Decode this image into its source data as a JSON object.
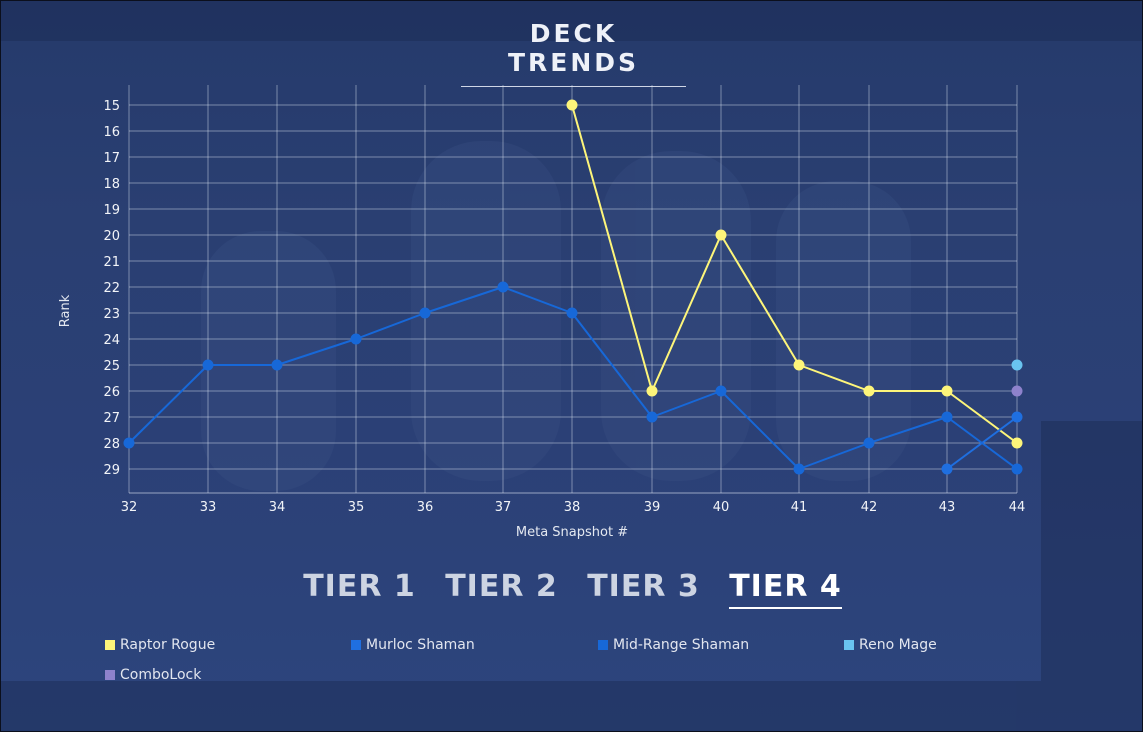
{
  "page": {
    "title": "DECK TRENDS"
  },
  "tabs": [
    {
      "label": "TIER 1",
      "active": false
    },
    {
      "label": "TIER 2",
      "active": false
    },
    {
      "label": "TIER 3",
      "active": false
    },
    {
      "label": "TIER 4",
      "active": true
    }
  ],
  "legend": [
    {
      "label": "Raptor Rogue",
      "color": "#fdf57a"
    },
    {
      "label": "Murloc Shaman",
      "color": "#1f6fe0"
    },
    {
      "label": "Mid-Range Shaman",
      "color": "#1768d8"
    },
    {
      "label": "Reno Mage",
      "color": "#69c3ef"
    },
    {
      "label": "ComboLock",
      "color": "#8e82cc"
    }
  ],
  "chart_data": {
    "type": "line",
    "xlabel": "Meta Snapshot #",
    "ylabel": "Rank",
    "x": [
      32,
      33,
      34,
      35,
      36,
      37,
      38,
      39,
      40,
      41,
      42,
      43,
      44
    ],
    "ylim": [
      15,
      30
    ],
    "y_reversed": true,
    "y_ticks": [
      15,
      16,
      17,
      18,
      19,
      20,
      21,
      22,
      23,
      24,
      25,
      26,
      27,
      28,
      29
    ],
    "grid": true,
    "legend_position": "bottom",
    "series": [
      {
        "name": "Raptor Rogue",
        "color": "#fdf57a",
        "values": [
          null,
          null,
          null,
          null,
          null,
          null,
          15,
          26,
          20,
          25,
          26,
          26,
          28
        ]
      },
      {
        "name": "Murloc Shaman",
        "color": "#1f6fe0",
        "values": [
          null,
          null,
          null,
          null,
          null,
          null,
          null,
          null,
          null,
          null,
          null,
          29,
          27
        ]
      },
      {
        "name": "Mid-Range Shaman",
        "color": "#1768d8",
        "values": [
          28,
          25,
          25,
          24,
          23,
          22,
          23,
          27,
          26,
          29,
          28,
          27,
          29
        ]
      },
      {
        "name": "Reno Mage",
        "color": "#69c3ef",
        "values": [
          null,
          null,
          null,
          null,
          null,
          null,
          null,
          null,
          null,
          null,
          null,
          null,
          25
        ]
      },
      {
        "name": "ComboLock",
        "color": "#8e82cc",
        "values": [
          null,
          null,
          null,
          null,
          null,
          null,
          null,
          null,
          null,
          null,
          null,
          null,
          26
        ]
      }
    ]
  }
}
